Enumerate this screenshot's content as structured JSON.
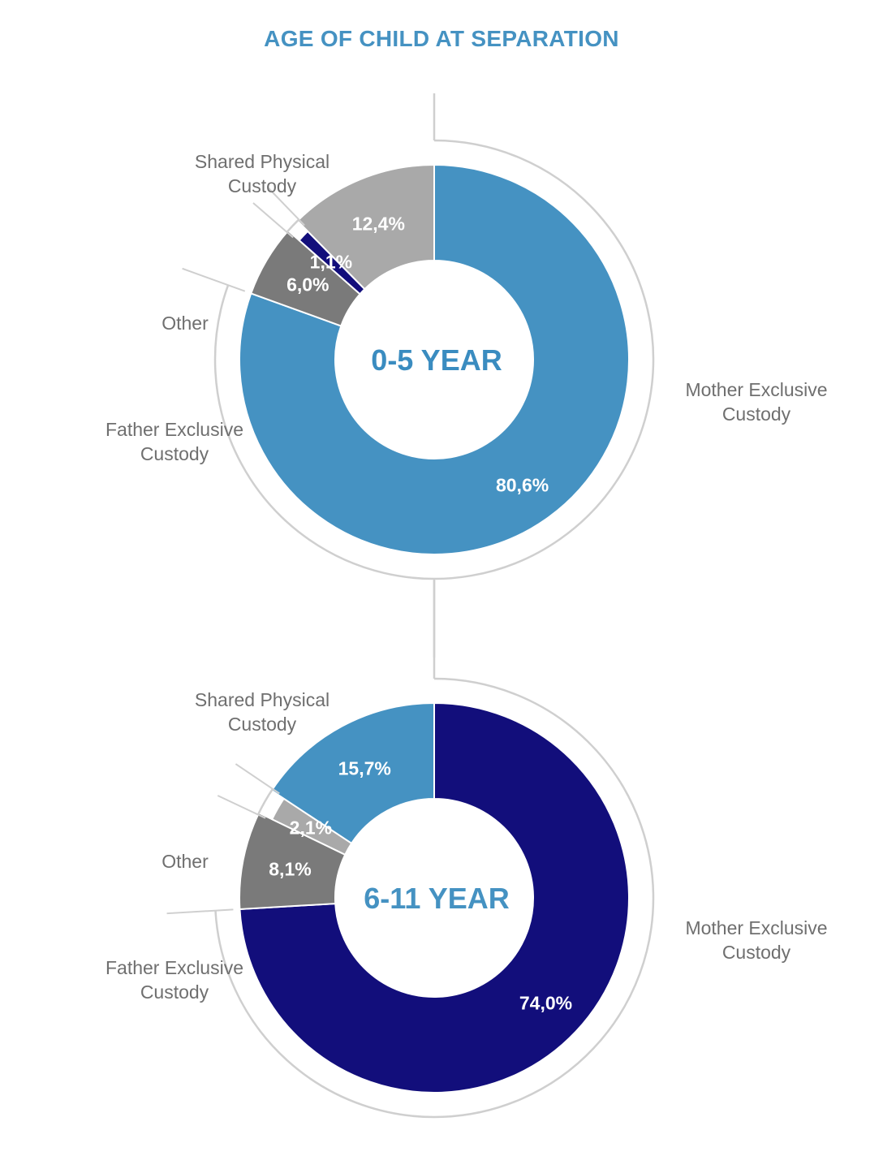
{
  "title": "AGE OF CHILD AT SEPARATION",
  "colors": {
    "title": "#4592c2",
    "light_blue": "#4592c2",
    "navy": "#120e7b",
    "light_gray": "#a9a9a9",
    "dark_gray": "#7a7a7a",
    "text_gray": "#6f6f6f",
    "outline": "#cfcfcf"
  },
  "chart_data": [
    {
      "type": "pie",
      "title": "0-5 YEAR",
      "categories": [
        "Mother Exclusive Custody",
        "Father Exclusive Custody",
        "Other",
        "Shared Physical Custody"
      ],
      "values": [
        80.6,
        6.0,
        1.1,
        12.4
      ],
      "value_labels": [
        "80,6%",
        "6,0%",
        "1,1%",
        "12,4%"
      ],
      "label_lines": [
        [
          "Mother Exclusive",
          "Custody"
        ],
        [
          "Father Exclusive",
          "Custody"
        ],
        [
          "Other"
        ],
        [
          "Shared Physical",
          "Custody"
        ]
      ],
      "colors": [
        "#4592c2",
        "#7a7a7a",
        "#120e7b",
        "#a9a9a9"
      ],
      "center_color": "#3a8cc0"
    },
    {
      "type": "pie",
      "title": "6-11 YEAR",
      "categories": [
        "Mother Exclusive Custody",
        "Father Exclusive Custody",
        "Other",
        "Shared Physical Custody"
      ],
      "values": [
        74.0,
        8.1,
        2.1,
        15.7
      ],
      "value_labels": [
        "74,0%",
        "8,1%",
        "2,1%",
        "15,7%"
      ],
      "label_lines": [
        [
          "Mother Exclusive",
          "Custody"
        ],
        [
          "Father Exclusive",
          "Custody"
        ],
        [
          "Other"
        ],
        [
          "Shared Physical",
          "Custody"
        ]
      ],
      "colors": [
        "#120e7b",
        "#7a7a7a",
        "#a9a9a9",
        "#4592c2"
      ],
      "center_color": "#4592c2"
    }
  ]
}
